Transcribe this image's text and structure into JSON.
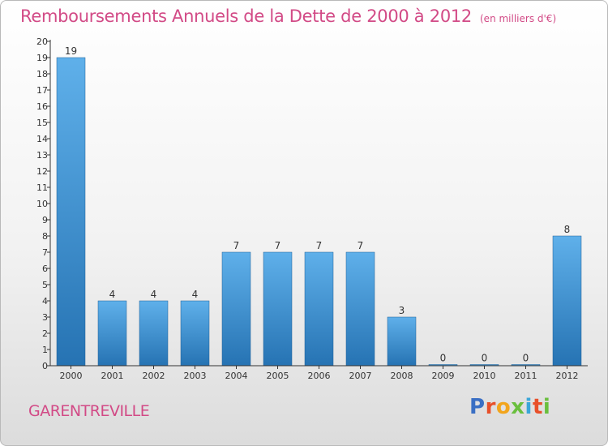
{
  "header": {
    "title": "Remboursements Annuels de la Dette de 2000 à 2012",
    "unit": "(en milliers d'€)"
  },
  "footer": {
    "commune": "GARENTREVILLE",
    "logo_text": "Proxiti",
    "logo_colors": [
      "#3a6fc4",
      "#e8502a",
      "#f2a51d",
      "#6abf3e",
      "#3aa6d8",
      "#e8502a",
      "#6abf3e"
    ]
  },
  "colors": {
    "bar_top": "#5fb0ea",
    "bar_bottom": "#2673b3",
    "title": "#d24a86",
    "axis": "#333333"
  },
  "chart_data": {
    "type": "bar",
    "title": "Remboursements Annuels de la Dette de 2000 à 2012",
    "categories": [
      "2000",
      "2001",
      "2002",
      "2003",
      "2004",
      "2005",
      "2006",
      "2007",
      "2008",
      "2009",
      "2010",
      "2011",
      "2012"
    ],
    "values": [
      19,
      4,
      4,
      4,
      7,
      7,
      7,
      7,
      3,
      0,
      0,
      0,
      8
    ],
    "ylim": [
      0,
      20
    ],
    "yticks": [
      0,
      1,
      2,
      3,
      4,
      5,
      6,
      7,
      8,
      9,
      10,
      11,
      12,
      13,
      14,
      15,
      16,
      17,
      18,
      19,
      20
    ],
    "data_labels": true,
    "grid": false,
    "xlabel": "",
    "ylabel": ""
  }
}
